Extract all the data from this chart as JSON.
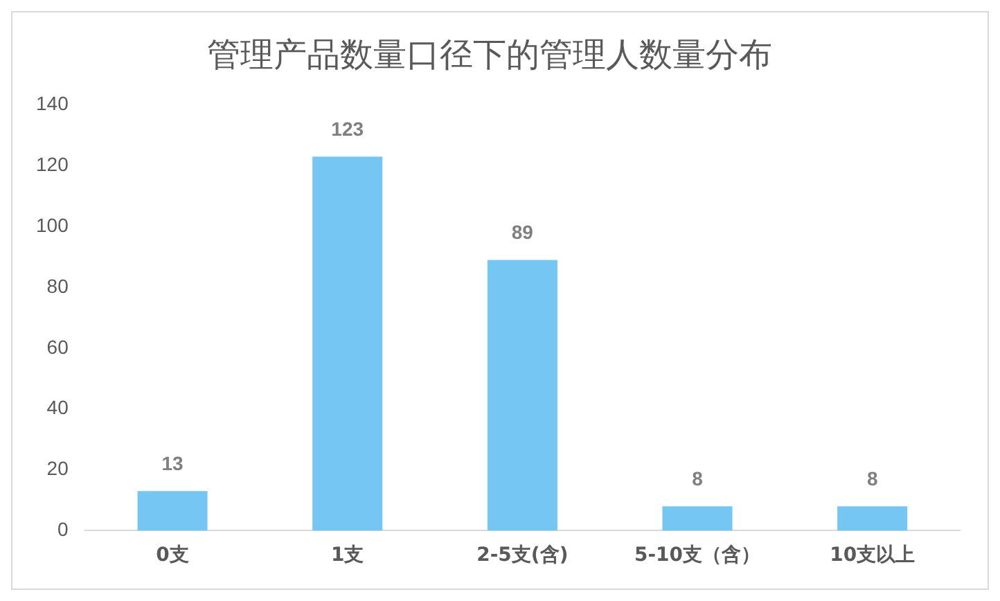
{
  "chart_data": {
    "type": "bar",
    "title": "管理产品数量口径下的管理人数量分布",
    "categories": [
      "0支",
      "1支",
      "2-5支(含)",
      "5-10支（含）",
      "10支以上"
    ],
    "values": [
      13,
      123,
      89,
      8,
      8
    ],
    "color": "#75c6f2",
    "ylim": [
      0,
      140
    ],
    "yticks": [
      0,
      20,
      40,
      60,
      80,
      100,
      120,
      140
    ],
    "grid": false,
    "data_labels": true
  }
}
